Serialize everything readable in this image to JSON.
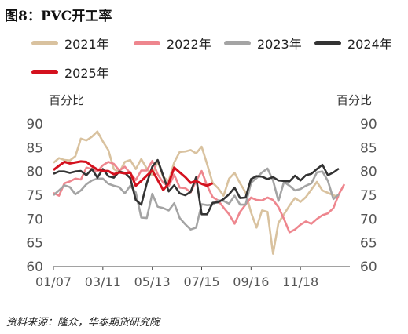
{
  "figure_title": "图8：PVC开工率",
  "source_note": "资料来源：隆众，华泰期货研究院",
  "chart_data": {
    "type": "line",
    "ylabel_left": "百分比",
    "ylabel_right": "百分比",
    "ylim": [
      60,
      90
    ],
    "y_ticks": [
      60,
      65,
      70,
      75,
      80,
      85,
      90
    ],
    "x_ticks": [
      "01/07",
      "03/11",
      "05/13",
      "07/15",
      "09/16",
      "11/18"
    ],
    "x_tick_positions": [
      0,
      9,
      18,
      27,
      36,
      45
    ],
    "x_range": [
      0,
      54
    ],
    "grid": false,
    "legend_placement": "top",
    "series": [
      {
        "name": "2021年",
        "color": "#D9C29F",
        "x_start": 0,
        "values": [
          81.8,
          82.8,
          82.4,
          82.3,
          83.2,
          86.9,
          86.5,
          87.3,
          88.4,
          86.3,
          84.5,
          80.5,
          79.8,
          82.0,
          82.4,
          80.5,
          82.6,
          80.6,
          79.2,
          82.2,
          78.8,
          78.0,
          81.9,
          84.1,
          84.2,
          84.5,
          83.8,
          85.2,
          81.5,
          77.6,
          76.5,
          74.9,
          78.5,
          79.7,
          77.5,
          75.6,
          71.4,
          68.2,
          71.8,
          71.5,
          62.7,
          69.2,
          71.0,
          72.8,
          74.4,
          73.6,
          74.6,
          76.2,
          77.8,
          76.0,
          75.5,
          75.0,
          74.5
        ]
      },
      {
        "name": "2022年",
        "color": "#EE868E",
        "x_start": 0,
        "values": [
          75.5,
          74.9,
          77.5,
          77.9,
          78.5,
          78.3,
          80.8,
          80.5,
          80.0,
          81.3,
          82.0,
          81.6,
          80.2,
          81.0,
          79.6,
          78.2,
          80.2,
          80.2,
          82.2,
          79.4,
          77.6,
          76.9,
          79.3,
          76.6,
          76.5,
          75.6,
          78.0,
          80.1,
          77.0,
          74.6,
          73.9,
          72.4,
          71.0,
          69.0,
          71.5,
          73.0,
          74.5,
          74.0,
          73.9,
          74.5,
          74.0,
          72.5,
          70.0,
          67.2,
          67.8,
          68.8,
          69.5,
          69.0,
          70.0,
          70.8,
          71.2,
          72.3,
          75.2,
          77.3
        ]
      },
      {
        "name": "2023年",
        "color": "#A4A4A4",
        "x_start": 0,
        "values": [
          75.0,
          76.0,
          77.1,
          76.7,
          75.2,
          76.0,
          77.3,
          78.1,
          78.5,
          78.5,
          77.4,
          77.0,
          76.7,
          75.4,
          77.0,
          75.6,
          70.3,
          70.2,
          75.3,
          72.6,
          72.3,
          71.8,
          73.3,
          70.2,
          68.9,
          67.8,
          68.2,
          73.1,
          72.9,
          73.0,
          73.9,
          73.8,
          73.2,
          74.9,
          73.0,
          73.0,
          77.6,
          78.6,
          79.8,
          80.6,
          78.1,
          73.8,
          77.8,
          77.0,
          76.0,
          76.3,
          77.0,
          77.5,
          79.8,
          80.0,
          78.0,
          74.2,
          75.2
        ]
      },
      {
        "name": "2024年",
        "color": "#333333",
        "x_start": 0,
        "values": [
          79.5,
          80.0,
          80.0,
          79.7,
          80.0,
          80.1,
          79.2,
          80.5,
          78.7,
          80.5,
          79.0,
          78.7,
          80.0,
          79.7,
          78.6,
          74.0,
          73.0,
          77.5,
          81.0,
          82.4,
          79.1,
          75.8,
          77.1,
          75.4,
          75.0,
          75.7,
          78.8,
          71.0,
          71.0,
          73.4,
          73.5,
          74.2,
          75.2,
          76.6,
          74.4,
          74.5,
          78.4,
          79.0,
          78.9,
          78.4,
          78.8,
          78.1,
          78.0,
          77.9,
          79.1,
          78.1,
          79.2,
          79.5,
          80.5,
          81.4,
          79.2,
          79.8,
          80.6
        ]
      },
      {
        "name": "2025年",
        "color": "#D4111E",
        "x_start": 0,
        "values": [
          80.3,
          81.2,
          82.0,
          81.7,
          81.9,
          82.1,
          82.0,
          81.1,
          80.4,
          80.1,
          80.1,
          79.4,
          79.8,
          79.6,
          79.8,
          77.0,
          78.0,
          79.1,
          80.2,
          78.2,
          76.1,
          77.5,
          80.8,
          79.8,
          78.8,
          77.6,
          78.0,
          77.4,
          77.0,
          77.5
        ]
      }
    ]
  }
}
